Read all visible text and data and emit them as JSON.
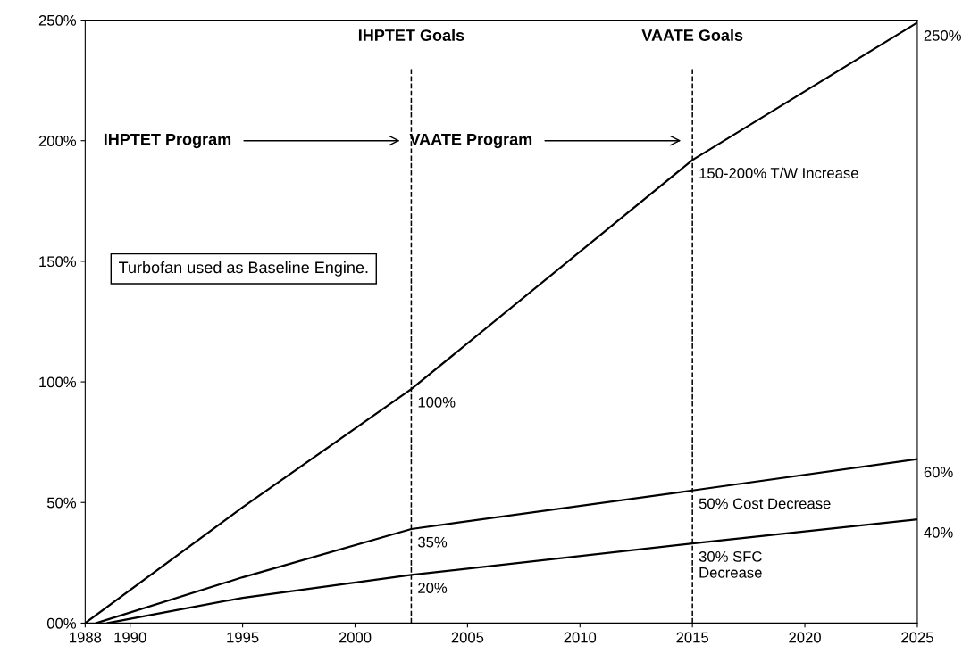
{
  "chart_data": {
    "type": "line",
    "series": [
      {
        "color": "#000000",
        "x": [
          1988,
          1995,
          2002.5,
          2015,
          2025
        ],
        "values": [
          0,
          48,
          97,
          192,
          249
        ]
      },
      {
        "color": "#000000",
        "x": [
          1988.5,
          1995,
          2002.5,
          2015,
          2025
        ],
        "values": [
          0,
          19,
          39,
          55,
          68
        ]
      },
      {
        "color": "#000000",
        "x": [
          1989,
          1995,
          2002.5,
          2015,
          2025
        ],
        "values": [
          0,
          10.5,
          20,
          33,
          43
        ]
      }
    ],
    "xlim": [
      1988,
      2025
    ],
    "xticks": [
      1988,
      1990,
      1995,
      2000,
      2005,
      2010,
      2015,
      2020,
      2025
    ],
    "ylim": [
      0,
      250
    ],
    "yticks": [
      {
        "value": 0,
        "label": "00%"
      },
      {
        "value": 50,
        "label": "50%"
      },
      {
        "value": 100,
        "label": "100%"
      },
      {
        "value": 150,
        "label": "150%"
      },
      {
        "value": 200,
        "label": "200%"
      },
      {
        "value": 250,
        "label": "250%"
      }
    ],
    "grid": false,
    "line_style": "solid",
    "marker": "none",
    "ref_lines": [
      {
        "axis": "x",
        "value": 2002.5,
        "label": "IHPTET Goals",
        "color": "#000000",
        "line_style": "dashed"
      },
      {
        "axis": "x",
        "value": 2015,
        "label": "VAATE Goals",
        "color": "#000000",
        "line_style": "dashed"
      }
    ],
    "annotations": [
      "IHPTET Program",
      "VAATE Program",
      "Turbofan used as Baseline Engine.",
      {
        "text": "100%",
        "x": 2002.5,
        "y": 97
      },
      {
        "text": "35%",
        "x": 2002.5,
        "y": 39
      },
      {
        "text": "20%",
        "x": 2002.5,
        "y": 20
      },
      {
        "text": "150-200% T/W Increase",
        "x": 2015,
        "y": 192
      },
      {
        "text": "50% Cost Decrease",
        "x": 2015,
        "y": 55
      },
      {
        "text": "30% SFC\nDecrease",
        "x": 2015,
        "y": 33
      },
      {
        "text": "250%",
        "x": 2025,
        "y": 249
      },
      {
        "text": "60%",
        "x": 2025,
        "y": 68
      },
      {
        "text": "40%",
        "x": 2025,
        "y": 43
      }
    ]
  }
}
